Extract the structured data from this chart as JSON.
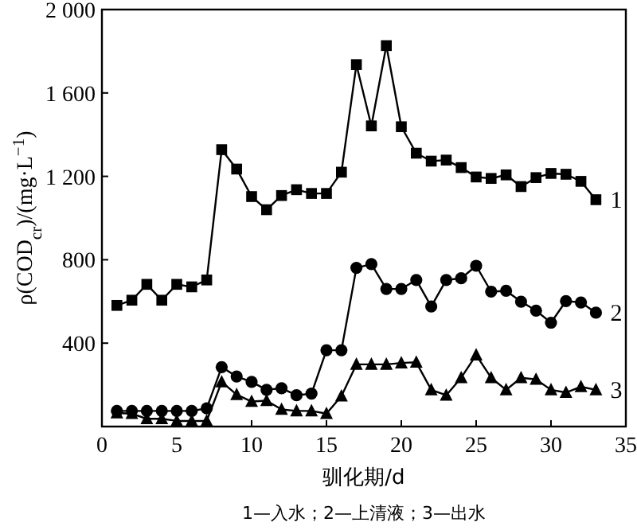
{
  "chart_data": {
    "type": "line",
    "xlabel": "驯化期/d",
    "ylabel": "ρ(COD$_{cr}$)/(mg·L$^{−1}$)",
    "annotations": [
      "1—入水；2—上清液；3—出水"
    ],
    "x": [
      1,
      2,
      3,
      4,
      5,
      6,
      7,
      8,
      9,
      10,
      11,
      12,
      13,
      14,
      15,
      16,
      17,
      18,
      19,
      20,
      21,
      22,
      23,
      24,
      25,
      26,
      27,
      28,
      29,
      30,
      31,
      32,
      33
    ],
    "xlim": [
      0,
      35
    ],
    "xticks": [
      0,
      5,
      10,
      15,
      20,
      25,
      30,
      35
    ],
    "ylim": [
      0,
      2000
    ],
    "yticks": [
      {
        "value": 400,
        "label": "400"
      },
      {
        "value": 800,
        "label": "800"
      },
      {
        "value": 1200,
        "label": "1 200"
      },
      {
        "value": 1600,
        "label": "1 600"
      },
      {
        "value": 2000,
        "label": "2 000"
      }
    ],
    "series": [
      {
        "name": "1",
        "color": "#000000",
        "marker": "square",
        "values": [
          581,
          606,
          682,
          606,
          682,
          670,
          703,
          1328,
          1235,
          1103,
          1040,
          1108,
          1136,
          1118,
          1118,
          1220,
          1736,
          1442,
          1827,
          1438,
          1311,
          1273,
          1278,
          1242,
          1197,
          1190,
          1207,
          1151,
          1194,
          1214,
          1210,
          1176,
          1088
        ]
      },
      {
        "name": "2",
        "color": "#000000",
        "marker": "circle",
        "values": [
          75,
          75,
          75,
          75,
          75,
          75,
          87,
          285,
          240,
          214,
          176,
          184,
          150,
          158,
          366,
          366,
          761,
          779,
          660,
          660,
          703,
          576,
          703,
          711,
          771,
          647,
          651,
          599,
          556,
          498,
          602,
          595,
          546
        ]
      },
      {
        "name": "3",
        "color": "#000000",
        "marker": "triangle",
        "values": [
          65,
          62,
          37,
          37,
          27,
          27,
          27,
          214,
          153,
          120,
          124,
          82,
          75,
          75,
          62,
          146,
          298,
          298,
          298,
          305,
          308,
          176,
          150,
          234,
          343,
          234,
          176,
          234,
          226,
          176,
          163,
          191,
          176
        ]
      }
    ]
  }
}
